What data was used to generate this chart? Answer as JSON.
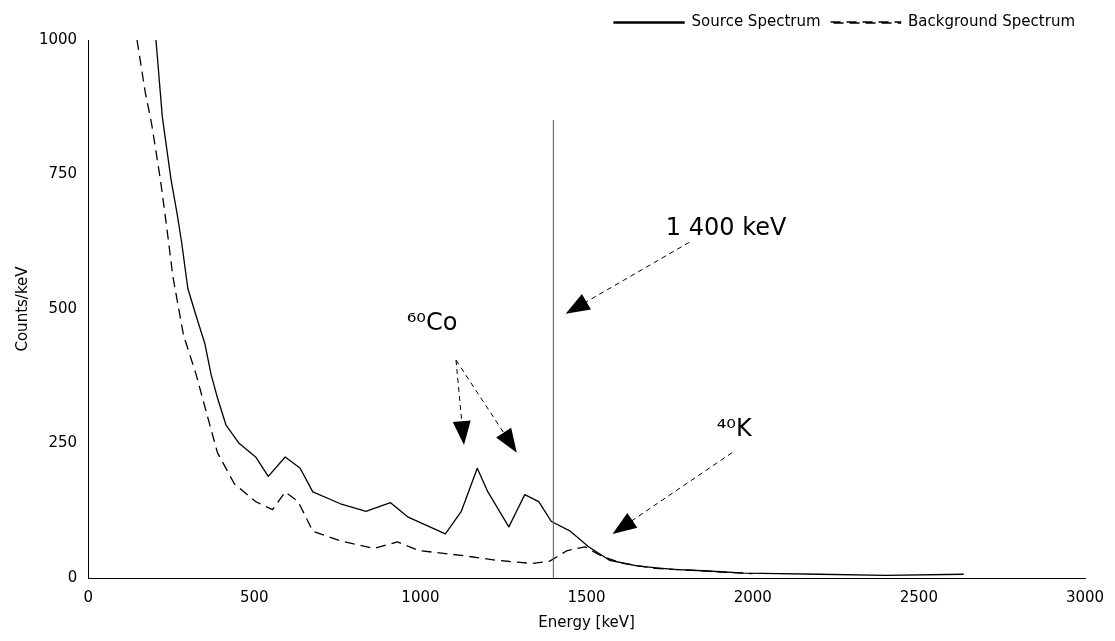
{
  "chart_data": {
    "type": "line",
    "xlabel": "Energy [keV]",
    "ylabel": "Counts/keV",
    "xlim": [
      0,
      3000
    ],
    "xticks": [
      0,
      500,
      1000,
      1500,
      2000,
      2500,
      3000
    ],
    "ylim": [
      0,
      1000
    ],
    "yticks": [
      0,
      250,
      500,
      750,
      1000
    ],
    "grid": false,
    "legend": "top right",
    "marker": "none",
    "series": [
      {
        "name": "Source Spectrum",
        "color": "#000000",
        "line_style": "solid",
        "x": [
          204,
          223,
          236,
          249,
          268,
          281,
          300,
          325,
          351,
          370,
          389,
          415,
          453,
          504,
          542,
          593,
          638,
          676,
          759,
          836,
          910,
          963,
          1075,
          1123,
          1171,
          1203,
          1266,
          1314,
          1356,
          1394,
          1451,
          1506,
          1569,
          1655,
          1761,
          1866,
          1974,
          2200,
          2400,
          2635
        ],
        "values": [
          1000,
          858,
          800,
          742,
          676,
          625,
          538,
          487,
          436,
          378,
          335,
          284,
          251,
          225,
          189,
          225,
          204,
          160,
          138,
          124,
          140,
          113,
          82,
          124,
          204,
          160,
          95,
          155,
          142,
          105,
          87,
          58,
          33,
          22,
          16,
          13,
          9,
          7,
          5,
          7
        ]
      },
      {
        "name": "Background Spectrum",
        "color": "#000000",
        "line_style": "dashed",
        "x": [
          147,
          172,
          191,
          217,
          236,
          255,
          287,
          325,
          357,
          389,
          440,
          504,
          555,
          593,
          632,
          676,
          759,
          861,
          931,
          995,
          1123,
          1228,
          1337,
          1388,
          1442,
          1496,
          1547,
          1611,
          1707,
          2000
        ],
        "values": [
          1000,
          902,
          844,
          742,
          654,
          560,
          451,
          378,
          305,
          233,
          175,
          142,
          127,
          160,
          142,
          87,
          69,
          55,
          67,
          51,
          42,
          33,
          27,
          31,
          51,
          58,
          40,
          27,
          18,
          8
        ]
      }
    ],
    "ref_lines": [
      {
        "axis": "x",
        "value": 1400,
        "color": "#555555"
      }
    ],
    "annotations": [
      "1 400 keV",
      "⁶⁰Co",
      "⁴⁰K"
    ]
  }
}
